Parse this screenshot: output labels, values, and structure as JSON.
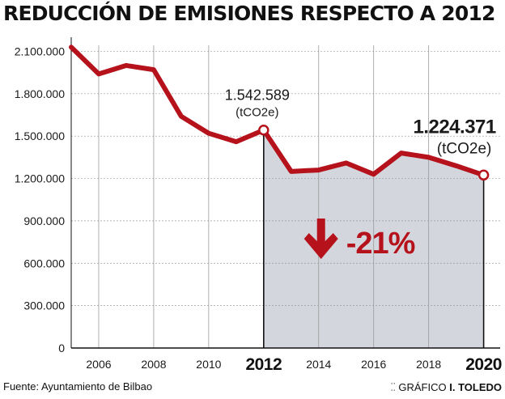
{
  "title": "REDUCCIÓN DE EMISIONES RESPECTO A 2012",
  "chart_data": {
    "type": "line",
    "title": "REDUCCIÓN DE EMISIONES RESPECTO A 2012",
    "xlabel": "",
    "ylabel": "",
    "x": [
      2005,
      2006,
      2007,
      2008,
      2009,
      2010,
      2011,
      2012,
      2013,
      2014,
      2015,
      2016,
      2017,
      2018,
      2019,
      2020
    ],
    "series": [
      {
        "name": "Emisiones (tCO2e)",
        "values": [
          2130000,
          1940000,
          2000000,
          1970000,
          1640000,
          1520000,
          1460000,
          1542589,
          1250000,
          1260000,
          1310000,
          1230000,
          1380000,
          1350000,
          1290000,
          1224371
        ]
      }
    ],
    "ylim": [
      0,
      2200000
    ],
    "xlim": [
      2005,
      2020.6
    ],
    "yticks": [
      0,
      300000,
      600000,
      900000,
      1200000,
      1500000,
      1800000,
      2100000
    ],
    "ytick_labels": [
      "0",
      "300.000",
      "600.000",
      "900.000",
      "1.200.000",
      "1.500.000",
      "1.800.000",
      "2.100.000"
    ],
    "xticks": [
      2006,
      2008,
      2010,
      2012,
      2014,
      2016,
      2018,
      2020
    ],
    "xtick_labels": [
      "2006",
      "2008",
      "2010",
      "2012",
      "2014",
      "2016",
      "2018",
      "2020"
    ],
    "highlight_years": [
      2012,
      2020
    ],
    "shaded_range": [
      2012,
      2020
    ],
    "colors": {
      "line": "#b5121b",
      "shade": "#d3d6dc",
      "grid": "#9a9a9a",
      "axis": "#111111"
    },
    "annotations": {
      "start": {
        "year": 2012,
        "value_label": "1.542.589",
        "unit_label": "(tCO2e)"
      },
      "end": {
        "year": 2020,
        "value_label": "1.224.371",
        "unit_label": "(tCO2e)"
      },
      "change": {
        "label": "-21%",
        "icon": "down-arrow-icon"
      }
    }
  },
  "footer": {
    "source": "Fuente: Ayuntamiento de Bilbao",
    "credit_prefix": "GRÁFICO",
    "credit_author": "I. TOLEDO"
  }
}
